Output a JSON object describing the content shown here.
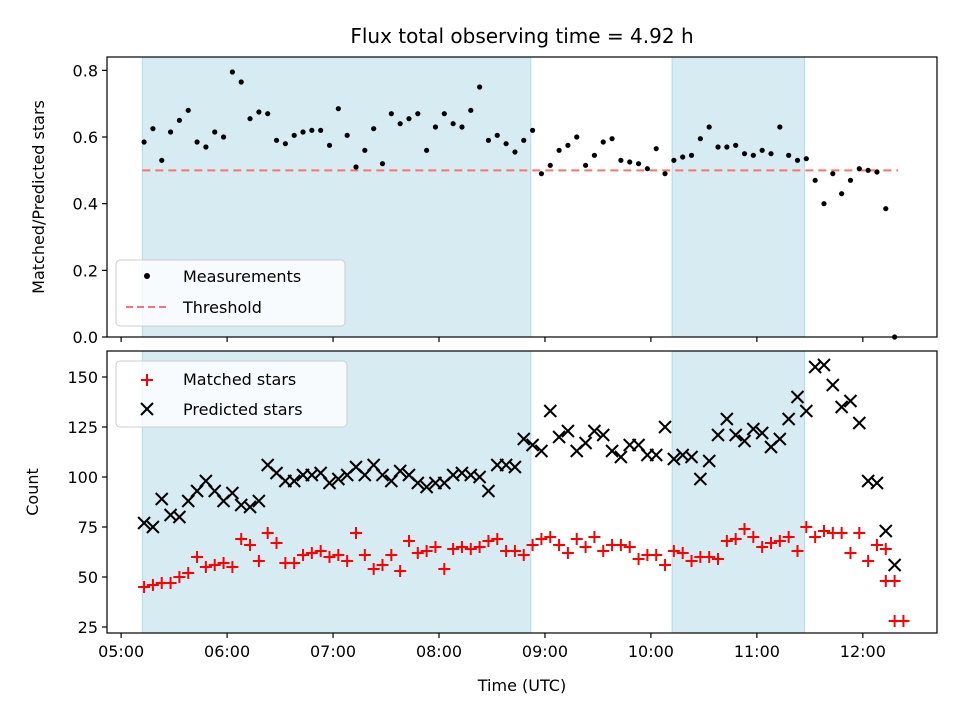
{
  "chart_data": {
    "type": "scatter",
    "title": "Flux total observing time = 4.92 h",
    "shared_x": {
      "label": "Time (UTC)",
      "unit": "hours UTC",
      "range": [
        "04:52",
        "12:42"
      ],
      "tick_labels": [
        "05:00",
        "06:00",
        "07:00",
        "08:00",
        "09:00",
        "10:00",
        "11:00",
        "12:00"
      ],
      "tick_values": [
        5,
        6,
        7,
        8,
        9,
        10,
        11,
        12
      ]
    },
    "shaded_intervals": [
      {
        "start": "05:12",
        "end": "08:52",
        "color": "#add8e6"
      },
      {
        "start": "10:12",
        "end": "11:27",
        "color": "#add8e6"
      }
    ],
    "panels": [
      {
        "ylabel": "Matched/Predicted stars",
        "ylim": [
          0,
          0.84
        ],
        "yticks": [
          "0.0",
          "0.2",
          "0.4",
          "0.6",
          "0.8"
        ],
        "ytick_values": [
          0,
          0.2,
          0.4,
          0.6,
          0.8
        ],
        "legend": {
          "placement": "lower-left",
          "entries": [
            "Measurements",
            "Threshold"
          ]
        },
        "threshold": {
          "name": "Threshold",
          "y": 0.5,
          "x_start": "05:12",
          "x_end": "12:20",
          "color": "#ff7070",
          "style": "dashed"
        },
        "series": [
          {
            "name": "Measurements",
            "marker": "dot",
            "color": "#000000",
            "x": [
              "05:13",
              "05:18",
              "05:23",
              "05:28",
              "05:33",
              "05:38",
              "05:43",
              "05:48",
              "05:53",
              "05:58",
              "06:03",
              "06:08",
              "06:13",
              "06:18",
              "06:23",
              "06:28",
              "06:33",
              "06:38",
              "06:43",
              "06:48",
              "06:53",
              "06:58",
              "07:03",
              "07:08",
              "07:13",
              "07:18",
              "07:23",
              "07:28",
              "07:33",
              "07:38",
              "07:43",
              "07:48",
              "07:53",
              "07:58",
              "08:03",
              "08:08",
              "08:13",
              "08:18",
              "08:23",
              "08:28",
              "08:33",
              "08:38",
              "08:43",
              "08:48",
              "08:53",
              "08:58",
              "09:03",
              "09:08",
              "09:13",
              "09:18",
              "09:23",
              "09:28",
              "09:33",
              "09:38",
              "09:43",
              "09:48",
              "09:53",
              "09:58",
              "10:03",
              "10:08",
              "10:13",
              "10:18",
              "10:23",
              "10:28",
              "10:33",
              "10:38",
              "10:43",
              "10:48",
              "10:53",
              "10:58",
              "11:03",
              "11:08",
              "11:13",
              "11:18",
              "11:23",
              "11:28",
              "11:33",
              "11:38",
              "11:43",
              "11:48",
              "11:53",
              "11:58",
              "12:03",
              "12:08",
              "12:13",
              "12:18"
            ],
            "y": [
              0.585,
              0.625,
              0.53,
              0.615,
              0.65,
              0.68,
              0.585,
              0.57,
              0.615,
              0.6,
              0.795,
              0.765,
              0.655,
              0.675,
              0.67,
              0.59,
              0.58,
              0.605,
              0.615,
              0.62,
              0.62,
              0.575,
              0.685,
              0.605,
              0.51,
              0.56,
              0.625,
              0.52,
              0.67,
              0.64,
              0.655,
              0.67,
              0.56,
              0.63,
              0.67,
              0.64,
              0.63,
              0.68,
              0.75,
              0.59,
              0.605,
              0.58,
              0.555,
              0.59,
              0.62,
              0.49,
              0.515,
              0.56,
              0.575,
              0.6,
              0.515,
              0.545,
              0.585,
              0.595,
              0.53,
              0.525,
              0.52,
              0.505,
              0.565,
              0.49,
              0.53,
              0.54,
              0.545,
              0.595,
              0.63,
              0.57,
              0.57,
              0.575,
              0.55,
              0.545,
              0.56,
              0.55,
              0.63,
              0.545,
              0.53,
              0.535,
              0.47,
              0.4,
              0.49,
              0.43,
              0.47,
              0.505,
              0.5,
              0.495,
              0.385,
              0.0
            ]
          }
        ]
      },
      {
        "ylabel": "Count",
        "ylim": [
          22,
          163
        ],
        "yticks": [
          "25",
          "50",
          "75",
          "100",
          "125",
          "150"
        ],
        "ytick_values": [
          25,
          50,
          75,
          100,
          125,
          150
        ],
        "legend": {
          "placement": "top-left",
          "entries": [
            "Matched stars",
            "Predicted stars"
          ]
        },
        "series": [
          {
            "name": "Matched stars",
            "marker": "plus",
            "color": "#ff0000",
            "x": [
              "05:13",
              "05:18",
              "05:23",
              "05:28",
              "05:33",
              "05:38",
              "05:43",
              "05:48",
              "05:53",
              "05:58",
              "06:03",
              "06:08",
              "06:13",
              "06:18",
              "06:23",
              "06:28",
              "06:33",
              "06:38",
              "06:43",
              "06:48",
              "06:53",
              "06:58",
              "07:03",
              "07:08",
              "07:13",
              "07:18",
              "07:23",
              "07:28",
              "07:33",
              "07:38",
              "07:43",
              "07:48",
              "07:53",
              "07:58",
              "08:03",
              "08:08",
              "08:13",
              "08:18",
              "08:23",
              "08:28",
              "08:33",
              "08:38",
              "08:43",
              "08:48",
              "08:53",
              "08:58",
              "09:03",
              "09:08",
              "09:13",
              "09:18",
              "09:23",
              "09:28",
              "09:33",
              "09:38",
              "09:43",
              "09:48",
              "09:53",
              "09:58",
              "10:03",
              "10:08",
              "10:13",
              "10:18",
              "10:23",
              "10:28",
              "10:33",
              "10:38",
              "10:43",
              "10:48",
              "10:53",
              "10:58",
              "11:03",
              "11:08",
              "11:13",
              "11:18",
              "11:23",
              "11:28",
              "11:33",
              "11:38",
              "11:43",
              "11:48",
              "11:53",
              "11:58",
              "12:03",
              "12:08",
              "12:13",
              "12:18"
            ],
            "y": [
              45,
              46,
              47,
              47,
              50,
              52,
              60,
              55,
              56,
              57,
              55,
              69,
              66,
              58,
              72,
              67,
              57,
              57,
              61,
              62,
              63,
              60,
              61,
              58,
              72,
              61,
              54,
              56,
              61,
              53,
              68,
              62,
              63,
              65,
              54,
              64,
              65,
              64,
              65,
              68,
              69,
              63,
              63,
              61,
              66,
              69,
              70,
              66,
              62,
              69,
              65,
              70,
              63,
              66,
              66,
              65,
              59,
              61,
              61,
              56,
              63,
              62,
              58,
              60,
              60,
              59,
              68,
              69,
              74,
              70,
              65,
              67,
              68,
              70,
              63,
              75,
              70,
              73,
              72,
              72,
              62,
              72,
              58,
              66,
              64,
              48
            ],
            "tail_x": [
              "12:13",
              "12:18",
              "12:23"
            ],
            "tail_y": [
              48,
              28,
              28
            ]
          },
          {
            "name": "Predicted stars",
            "marker": "x",
            "color": "#000000",
            "x": [
              "05:13",
              "05:18",
              "05:23",
              "05:28",
              "05:33",
              "05:38",
              "05:43",
              "05:48",
              "05:53",
              "05:58",
              "06:03",
              "06:08",
              "06:13",
              "06:18",
              "06:23",
              "06:28",
              "06:33",
              "06:38",
              "06:43",
              "06:48",
              "06:53",
              "06:58",
              "07:03",
              "07:08",
              "07:13",
              "07:18",
              "07:23",
              "07:28",
              "07:33",
              "07:38",
              "07:43",
              "07:48",
              "07:53",
              "07:58",
              "08:03",
              "08:08",
              "08:13",
              "08:18",
              "08:23",
              "08:28",
              "08:33",
              "08:38",
              "08:43",
              "08:48",
              "08:53",
              "08:58",
              "09:03",
              "09:08",
              "09:13",
              "09:18",
              "09:23",
              "09:28",
              "09:33",
              "09:38",
              "09:43",
              "09:48",
              "09:53",
              "09:58",
              "10:03",
              "10:08",
              "10:13",
              "10:18",
              "10:23",
              "10:28",
              "10:33",
              "10:38",
              "10:43",
              "10:48",
              "10:53",
              "10:58",
              "11:03",
              "11:08",
              "11:13",
              "11:18",
              "11:23",
              "11:28",
              "11:33",
              "11:38",
              "11:43",
              "11:48",
              "11:53",
              "11:58",
              "12:03",
              "12:08",
              "12:13",
              "12:18"
            ],
            "y": [
              77,
              75,
              89,
              81,
              80,
              88,
              93,
              98,
              93,
              88,
              92,
              86,
              85,
              88,
              106,
              102,
              98,
              98,
              101,
              101,
              102,
              97,
              99,
              101,
              105,
              101,
              106,
              101,
              98,
              103,
              101,
              97,
              95,
              97,
              97,
              101,
              102,
              101,
              100,
              93,
              106,
              106,
              105,
              119,
              116,
              113,
              133,
              120,
              123,
              113,
              117,
              123,
              121,
              113,
              110,
              116,
              116,
              111,
              111,
              125,
              109,
              111,
              110,
              99,
              108,
              121,
              129,
              121,
              118,
              124,
              122,
              115,
              119,
              129,
              140,
              133,
              155,
              156,
              146,
              135,
              138,
              127,
              98,
              97,
              73,
              56
            ],
            "tail_note": ""
          }
        ]
      }
    ]
  }
}
